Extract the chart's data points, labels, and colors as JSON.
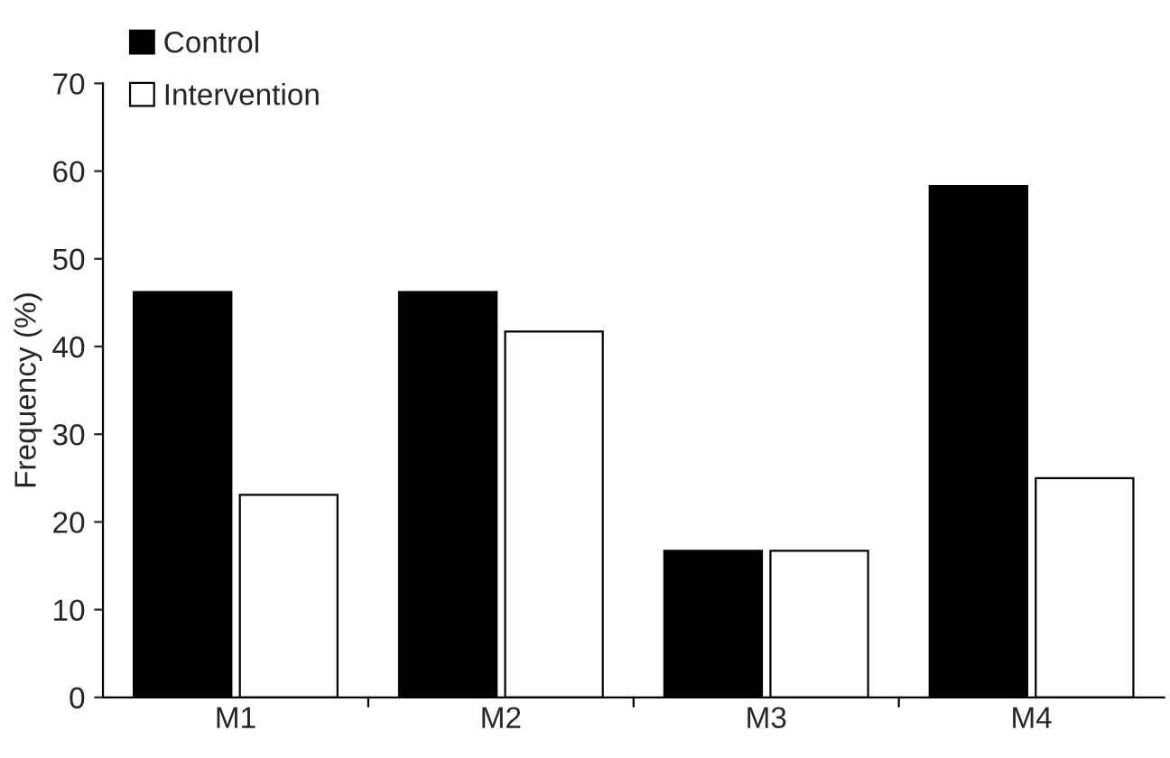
{
  "chart_data": {
    "type": "bar",
    "ylabel": "Frequency (%)",
    "categories": [
      "M1",
      "M2",
      "M3",
      "M4"
    ],
    "series": [
      {
        "name": "Control",
        "color": "#000000",
        "values": [
          46.2,
          46.2,
          16.7,
          58.3
        ]
      },
      {
        "name": "Intervention",
        "color": "#ffffff",
        "values": [
          23.1,
          41.7,
          16.7,
          25.0
        ]
      }
    ],
    "ylim": [
      0,
      70
    ],
    "yticks": [
      0,
      10,
      20,
      30,
      40,
      50,
      60,
      70
    ],
    "grid": false,
    "legend": "top left"
  }
}
